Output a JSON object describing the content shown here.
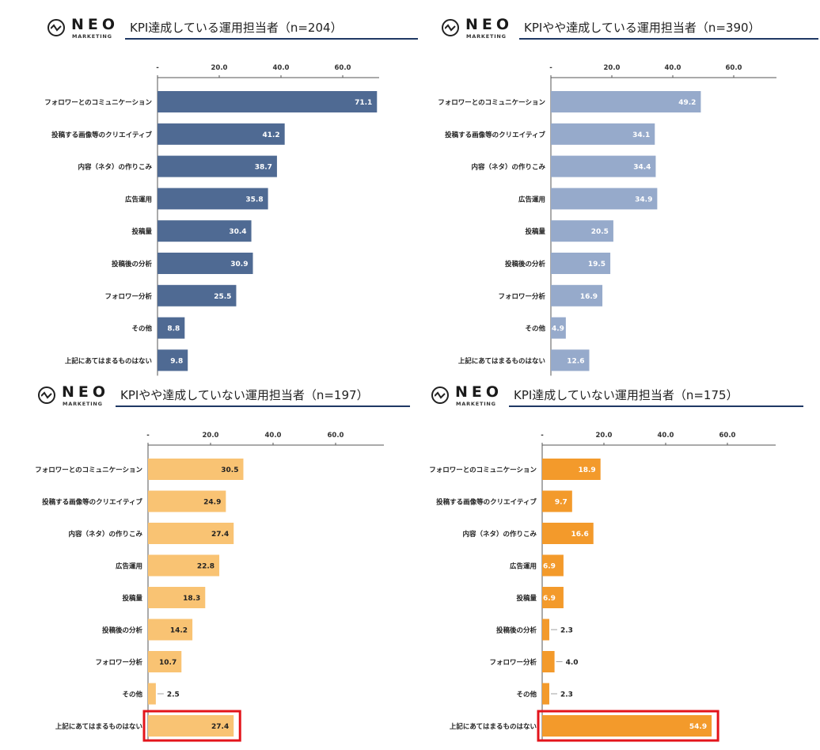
{
  "brand": {
    "word": "NEO",
    "sub": "MARKETING"
  },
  "colors": {
    "achieved": "#4f6a93",
    "somewhat_achieved": "#96aacb",
    "somewhat_not": "#f9c373",
    "not_achieved": "#f39a2b",
    "highlight": "#e3141b"
  },
  "chart_data": [
    {
      "type": "bar",
      "orientation": "horizontal",
      "title": "KPI達成している運用担当者（n=204）",
      "xlim": [
        0,
        75
      ],
      "ticks": [
        "-",
        "20.0",
        "40.0",
        "60.0"
      ],
      "categories": [
        "フォロワーとのコミュニケーション",
        "投稿する画像等のクリエイティブ",
        "内容（ネタ）の作りこみ",
        "広告運用",
        "投稿量",
        "投稿後の分析",
        "フォロワー分析",
        "その他",
        "上記にあてはまるものはない"
      ],
      "labels": [
        "71.1",
        "41.2",
        "38.7",
        "35.8",
        "30.4",
        "30.9",
        "25.5",
        "8.8",
        "9.8"
      ],
      "values": [
        71.1,
        41.2,
        38.7,
        35.8,
        30.4,
        30.9,
        25.5,
        8.8,
        9.8
      ],
      "color": "#4f6a93",
      "label_color": "#ffffff"
    },
    {
      "type": "bar",
      "orientation": "horizontal",
      "title": "KPIやや達成している運用担当者（n=390）",
      "xlim": [
        0,
        75
      ],
      "ticks": [
        "-",
        "20.0",
        "40.0",
        "60.0"
      ],
      "categories": [
        "フォロワーとのコミュニケーション",
        "投稿する画像等のクリエイティブ",
        "内容（ネタ）の作りこみ",
        "広告運用",
        "投稿量",
        "投稿後の分析",
        "フォロワー分析",
        "その他",
        "上記にあてはまるものはない"
      ],
      "labels": [
        "49.2",
        "34.1",
        "34.4",
        "34.9",
        "20.5",
        "19.5",
        "16.9",
        "4.9",
        "12.6"
      ],
      "values": [
        49.2,
        34.1,
        34.4,
        34.9,
        20.5,
        19.5,
        16.9,
        4.9,
        12.6
      ],
      "color": "#96aacb",
      "label_color": "#ffffff"
    },
    {
      "type": "bar",
      "orientation": "horizontal",
      "title": "KPIやや達成していない運用担当者（n=197）",
      "xlim": [
        0,
        75
      ],
      "ticks": [
        "-",
        "20.0",
        "40.0",
        "60.0"
      ],
      "categories": [
        "フォロワーとのコミュニケーション",
        "投稿する画像等のクリエイティブ",
        "内容（ネタ）の作りこみ",
        "広告運用",
        "投稿量",
        "投稿後の分析",
        "フォロワー分析",
        "その他",
        "上記にあてはまるものはない"
      ],
      "labels": [
        "30.5",
        "24.9",
        "27.4",
        "22.8",
        "18.3",
        "14.2",
        "10.7",
        "2.5",
        "27.4"
      ],
      "values": [
        30.5,
        24.9,
        27.4,
        22.8,
        18.3,
        14.2,
        10.7,
        2.5,
        27.4
      ],
      "color": "#f9c373",
      "label_color": "#222222",
      "highlighted_category": "上記にあてはまるものはない"
    },
    {
      "type": "bar",
      "orientation": "horizontal",
      "title": "KPI達成していない運用担当者（n=175）",
      "xlim": [
        0,
        75
      ],
      "ticks": [
        "-",
        "20.0",
        "40.0",
        "60.0"
      ],
      "categories": [
        "フォロワーとのコミュニケーション",
        "投稿する画像等のクリエイティブ",
        "内容（ネタ）の作りこみ",
        "広告運用",
        "投稿量",
        "投稿後の分析",
        "フォロワー分析",
        "その他",
        "上記にあてはまるものはない"
      ],
      "labels": [
        "18.9",
        "9.7",
        "16.6",
        "6.9",
        "6.9",
        "2.3",
        "4.0",
        "2.3",
        "54.9"
      ],
      "values": [
        18.9,
        9.7,
        16.6,
        6.9,
        6.9,
        2.3,
        4.0,
        2.3,
        54.9
      ],
      "color": "#f39a2b",
      "label_color": "#ffffff",
      "highlighted_category": "上記にあてはまるものはない"
    }
  ]
}
